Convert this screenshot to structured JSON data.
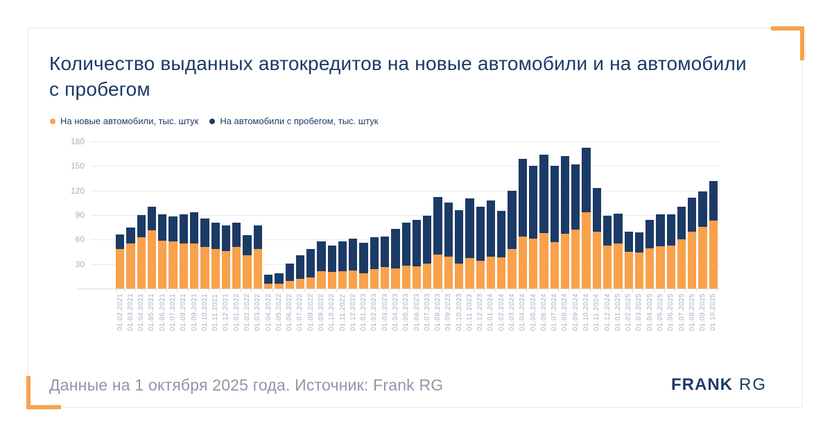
{
  "header": {
    "title_lines": [
      "Количество выданных автокредитов на новые автомобили и на автомобили",
      "с пробегом"
    ]
  },
  "chart_data": {
    "type": "bar",
    "stacked": true,
    "title": "Количество выданных автокредитов на новые автомобили и на автомобили с пробегом",
    "unit": "тыс. штук",
    "categories": [
      "01.02.2021",
      "01.03.2021",
      "01.04.2021",
      "01.05.2021",
      "01.06.2021",
      "01.07.2021",
      "01.08.2021",
      "01.09.2021",
      "01.10.2021",
      "01.11.2021",
      "01.12.2021",
      "01.01.2022",
      "01.02.2022",
      "01.03.2022",
      "01.04.2022",
      "01.05.2022",
      "01.06.2022",
      "01.07.2022",
      "01.08.2022",
      "01.09.2022",
      "01.10.2022",
      "01.11.2022",
      "01.12.2022",
      "01.01.2023",
      "01.02.2023",
      "01.03.2023",
      "01.04.2023",
      "01.05.2023",
      "01.06.2023",
      "01.07.2023",
      "01.08.2023",
      "01.09.2023",
      "01.10.2023",
      "01.11.2023",
      "01.12.2023",
      "01.01.2024",
      "01.02.2024",
      "01.03.2024",
      "01.04.2024",
      "01.05.2024",
      "01.06.2024",
      "01.07.2024",
      "01.08.2024",
      "01.09.2024",
      "01.10.2024",
      "01.11.2024",
      "01.12.2024",
      "01.01.2025",
      "01.02.2025",
      "01.03.2025",
      "01.04.2025",
      "01.05.2025",
      "01.06.2025",
      "01.07.2025",
      "01.08.2025",
      "01.09.2025",
      "01.10.2025"
    ],
    "series": [
      {
        "name": "На новые автомобили, тыс. штук",
        "color": "#F9A14B",
        "values": [
          48,
          55,
          63,
          71,
          59,
          58,
          55,
          55,
          51,
          48,
          46,
          51,
          41,
          48,
          6,
          6,
          9,
          12,
          14,
          21,
          20,
          21,
          22,
          19,
          24,
          26,
          25,
          28,
          27,
          31,
          42,
          39,
          31,
          37,
          34,
          39,
          38,
          48,
          64,
          61,
          68,
          57,
          67,
          72,
          93,
          70,
          53,
          55,
          45,
          44,
          49,
          52,
          53,
          60,
          70,
          76,
          83
        ]
      },
      {
        "name": "На автомобили с пробегом, тыс. штук",
        "color": "#1C3A66",
        "values": [
          18,
          20,
          27,
          29,
          32,
          30,
          36,
          38,
          35,
          33,
          31,
          30,
          24,
          29,
          11,
          13,
          22,
          29,
          34,
          37,
          33,
          37,
          39,
          37,
          39,
          38,
          48,
          53,
          57,
          58,
          70,
          66,
          65,
          73,
          66,
          69,
          57,
          72,
          95,
          89,
          96,
          93,
          95,
          80,
          79,
          53,
          36,
          37,
          25,
          25,
          35,
          39,
          38,
          40,
          41,
          43,
          49
        ]
      }
    ],
    "ylim": [
      0,
      180
    ],
    "yticks": [
      30,
      60,
      90,
      120,
      150,
      180
    ],
    "grid": true,
    "legend_position": "top-left"
  },
  "footer": {
    "note": "Данные на 1 октября 2025 года. Источник: Frank RG"
  },
  "logo": {
    "primary": "FRANK",
    "secondary": "RG"
  },
  "colors": {
    "accent_orange": "#F9A14B",
    "navy": "#1C3A66",
    "title_text": "#1B3A68",
    "axis_text": "#A8AFBF",
    "gridline": "#E7EAF1",
    "footer_text": "#8F96A9",
    "card_border": "#E8E8EA"
  }
}
